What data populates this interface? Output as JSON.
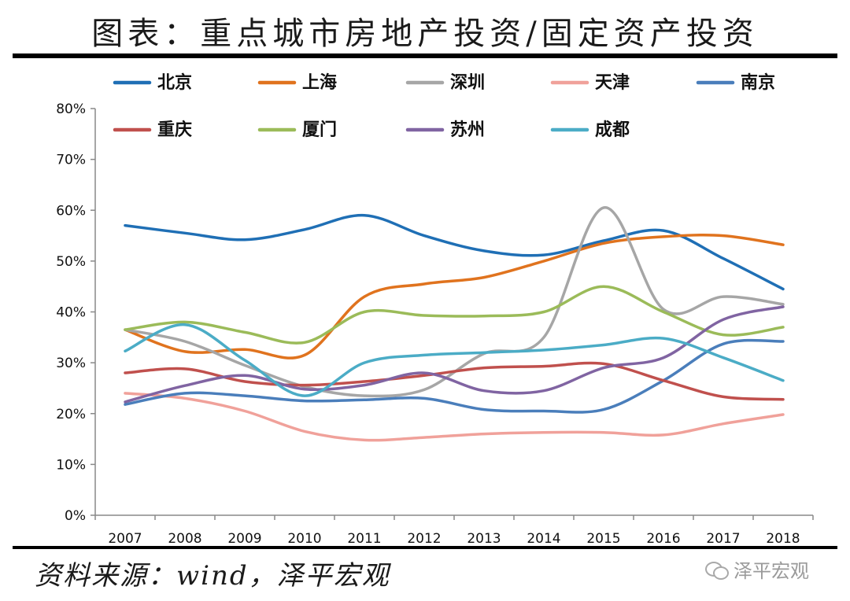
{
  "header": {
    "title": "图表：重点城市房地产投资/固定资产投资"
  },
  "footer": {
    "source": "资料来源：wind，泽平宏观",
    "watermark": "泽平宏观"
  },
  "chart_data": {
    "type": "line",
    "title": "图表：重点城市房地产投资/固定资产投资",
    "xlabel": "",
    "ylabel": "",
    "categories": [
      "2007",
      "2008",
      "2009",
      "2010",
      "2011",
      "2012",
      "2013",
      "2014",
      "2015",
      "2016",
      "2017",
      "2018"
    ],
    "ylim": [
      0,
      80
    ],
    "yticks": [
      "0%",
      "10%",
      "20%",
      "30%",
      "40%",
      "50%",
      "60%",
      "70%",
      "80%"
    ],
    "grid": false,
    "legend_position": "top",
    "series": [
      {
        "name": "北京",
        "color": "#1f6fb5",
        "values": [
          57.0,
          55.5,
          54.2,
          56.2,
          59.0,
          55.0,
          52.0,
          51.2,
          54.0,
          56.0,
          50.5,
          44.5
        ]
      },
      {
        "name": "上海",
        "color": "#e0731e",
        "values": [
          36.5,
          32.2,
          32.6,
          31.5,
          43.0,
          45.5,
          46.8,
          50.0,
          53.5,
          54.8,
          55.0,
          53.2
        ]
      },
      {
        "name": "深圳",
        "color": "#a6a6a6",
        "values": [
          36.5,
          34.2,
          29.5,
          25.3,
          23.5,
          24.7,
          31.8,
          35.0,
          60.5,
          40.5,
          43.0,
          41.5
        ]
      },
      {
        "name": "天津",
        "color": "#f0a19a",
        "values": [
          24.0,
          23.0,
          20.5,
          16.5,
          14.8,
          15.3,
          16.0,
          16.3,
          16.3,
          15.8,
          18.0,
          19.8
        ]
      },
      {
        "name": "南京",
        "color": "#4a7ebb",
        "values": [
          21.8,
          24.0,
          23.5,
          22.5,
          22.7,
          23.0,
          20.8,
          20.5,
          20.8,
          26.5,
          33.7,
          34.2
        ]
      },
      {
        "name": "重庆",
        "color": "#c0504d",
        "values": [
          28.0,
          28.8,
          26.3,
          25.6,
          26.3,
          27.5,
          29.0,
          29.3,
          29.8,
          26.5,
          23.3,
          22.8
        ]
      },
      {
        "name": "厦门",
        "color": "#9bbb59",
        "values": [
          36.5,
          38.0,
          36.0,
          34.0,
          40.0,
          39.3,
          39.2,
          40.0,
          45.0,
          40.0,
          35.5,
          37.0
        ]
      },
      {
        "name": "苏州",
        "color": "#8064a2",
        "values": [
          22.3,
          25.5,
          27.5,
          24.8,
          25.6,
          28.0,
          24.5,
          24.5,
          29.0,
          31.0,
          38.5,
          41.0
        ]
      },
      {
        "name": "成都",
        "color": "#4bacc6",
        "values": [
          32.3,
          37.5,
          30.5,
          23.5,
          30.0,
          31.5,
          32.0,
          32.5,
          33.5,
          34.8,
          31.0,
          26.5
        ]
      }
    ]
  }
}
